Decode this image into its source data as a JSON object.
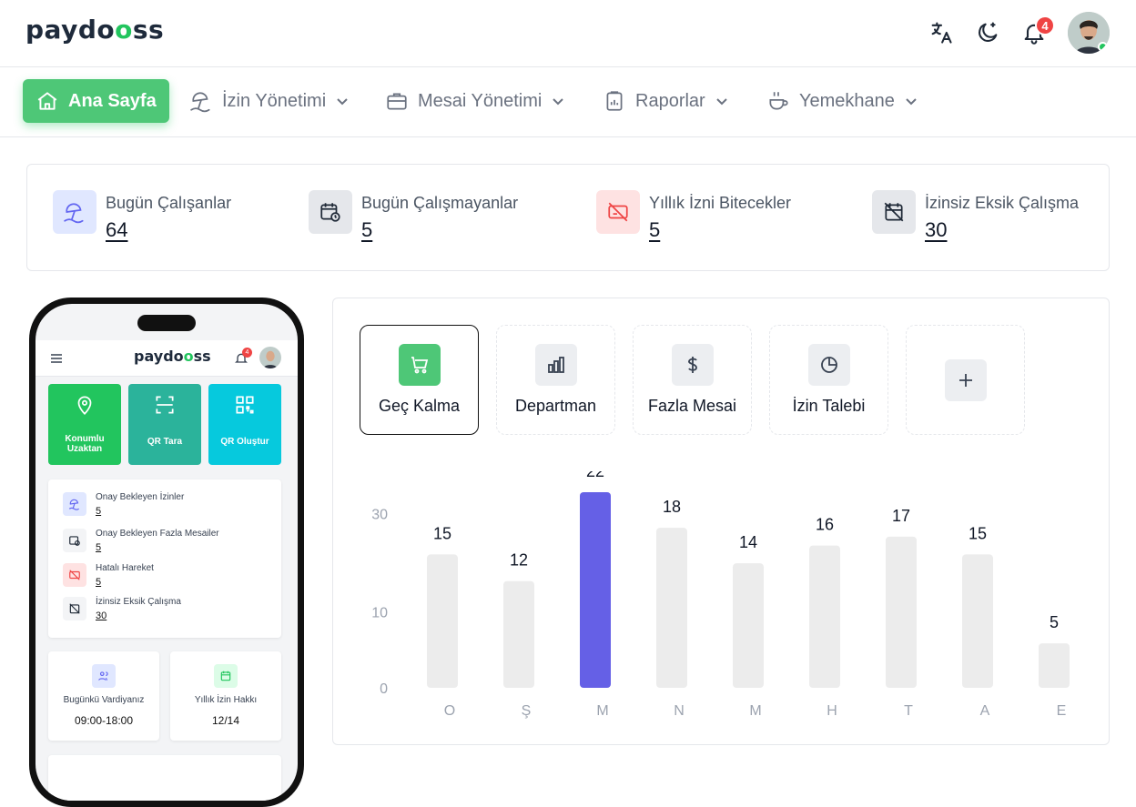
{
  "header": {
    "logo_a": "payd",
    "logo_b": "o",
    "logo_c": "o",
    "logo_d": "ss",
    "notification_count": "4"
  },
  "nav": {
    "items": [
      {
        "label": "Ana Sayfa"
      },
      {
        "label": "İzin Yönetimi"
      },
      {
        "label": "Mesai Yönetimi"
      },
      {
        "label": "Raporlar"
      },
      {
        "label": "Yemekhane"
      }
    ]
  },
  "stats": [
    {
      "label": "Bugün Çalışanlar",
      "value": "64",
      "color": "#e0e7ff"
    },
    {
      "label": "Bugün Çalışmayanlar",
      "value": "5",
      "color": "#e5e7eb"
    },
    {
      "label": "Yıllık İzni Bitecekler",
      "value": "5",
      "color": "#fee2e2"
    },
    {
      "label": "İzinsiz Eksik Çalışma",
      "value": "30",
      "color": "#e5e7eb"
    }
  ],
  "phone": {
    "notification_count": "4",
    "tiles": [
      {
        "label": "Konumlu Uzaktan",
        "color": "#22c55e"
      },
      {
        "label": "QR Tara",
        "color": "#2bb39b"
      },
      {
        "label": "QR Oluştur",
        "color": "#06c9dd"
      }
    ],
    "list": [
      {
        "label": "Onay Bekleyen İzinler",
        "value": "5"
      },
      {
        "label": "Onay Bekleyen Fazla Mesailer",
        "value": "5"
      },
      {
        "label": "Hatalı Hareket",
        "value": "5"
      },
      {
        "label": "İzinsiz Eksik Çalışma",
        "value": "30"
      }
    ],
    "shift_label": "Bugünkü Vardiyanız",
    "shift_value": "09:00-18:00",
    "leave_label": "Yıllık İzin Hakkı",
    "leave_value": "12/14"
  },
  "tabs": [
    {
      "label": "Geç Kalma",
      "icon": "cart-icon"
    },
    {
      "label": "Departman",
      "icon": "bar-chart-icon"
    },
    {
      "label": "Fazla Mesai",
      "icon": "dollar-icon"
    },
    {
      "label": "İzin Talebi",
      "icon": "pie-icon"
    },
    {
      "label": "",
      "icon": "plus-icon"
    }
  ],
  "chart_data": {
    "type": "bar",
    "categories": [
      "O",
      "Ş",
      "M",
      "N",
      "M",
      "H",
      "T",
      "A",
      "E"
    ],
    "values": [
      15,
      12,
      22,
      18,
      14,
      16,
      17,
      15,
      5
    ],
    "highlight_index": 2,
    "highlight_color": "#6560e6",
    "bar_color": "#ececec",
    "yticks": [
      "30",
      "10",
      "0"
    ],
    "ylim": [
      0,
      30
    ],
    "grid": false
  }
}
